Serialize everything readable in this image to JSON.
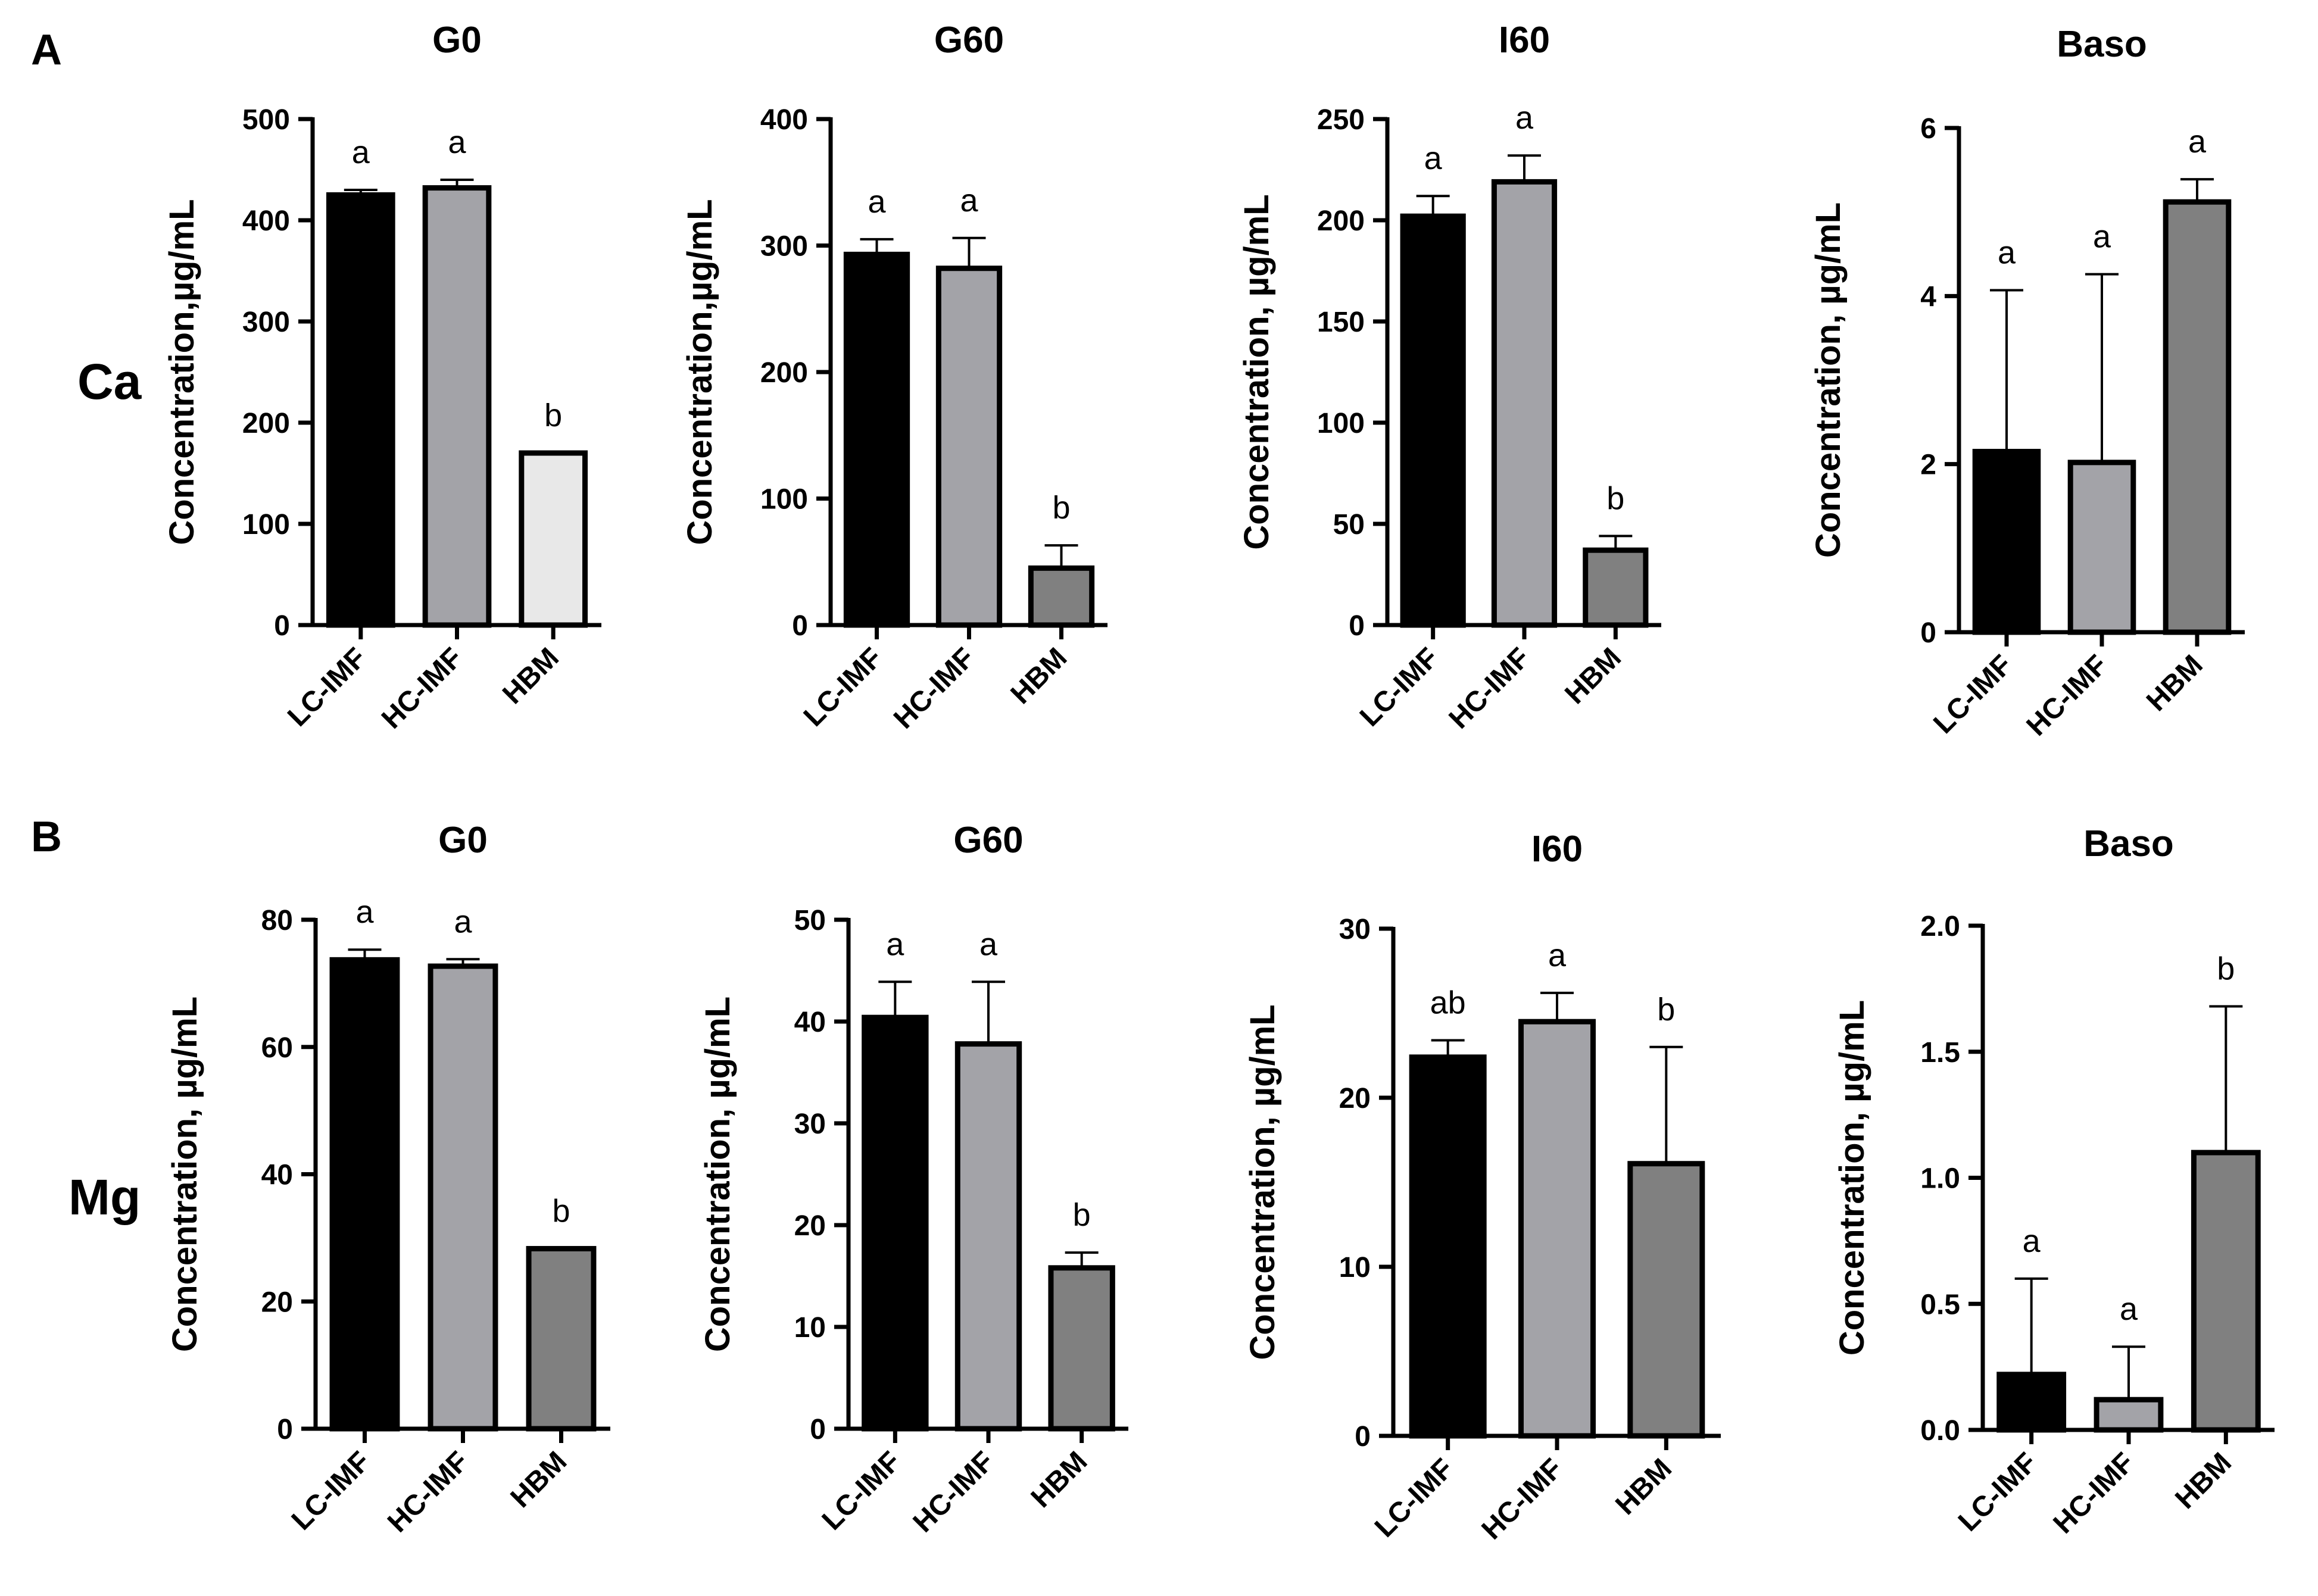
{
  "panel_labels": [
    "A",
    "B"
  ],
  "row_labels": [
    "Ca",
    "Mg"
  ],
  "colors": {
    "LC-IMF": "#000000",
    "HC-IMF": "#a3a3a8",
    "HBM_light": "#e8e8e8",
    "HBM_dark": "#808080",
    "axis": "#000000"
  },
  "chart_data": [
    {
      "type": "bar",
      "title": "G0",
      "ylabel": "Concentration,µg/mL",
      "categories": [
        "LC-IMF",
        "HC-IMF",
        "HBM"
      ],
      "values": [
        425,
        432,
        170
      ],
      "errors": [
        5,
        8,
        0
      ],
      "significance": [
        "a",
        "a",
        "b"
      ],
      "ylim": [
        0,
        500
      ],
      "yticks": [
        0,
        100,
        200,
        300,
        400,
        500
      ],
      "hbm_shade": "light"
    },
    {
      "type": "bar",
      "title": "G60",
      "ylabel": "Concentration,µg/mL",
      "categories": [
        "LC-IMF",
        "HC-IMF",
        "HBM"
      ],
      "values": [
        293,
        282,
        45
      ],
      "errors": [
        12,
        24,
        18
      ],
      "significance": [
        "a",
        "a",
        "b"
      ],
      "ylim": [
        0,
        400
      ],
      "yticks": [
        0,
        100,
        200,
        300,
        400
      ],
      "hbm_shade": "dark"
    },
    {
      "type": "bar",
      "title": "I60",
      "ylabel": "Concentration, µg/mL",
      "categories": [
        "LC-IMF",
        "HC-IMF",
        "HBM"
      ],
      "values": [
        202,
        219,
        37
      ],
      "errors": [
        10,
        13,
        7
      ],
      "significance": [
        "a",
        "a",
        "b"
      ],
      "ylim": [
        0,
        250
      ],
      "yticks": [
        0,
        50,
        100,
        150,
        200,
        250
      ],
      "hbm_shade": "dark"
    },
    {
      "type": "bar",
      "title": "Baso",
      "ylabel": "Concentration, µg/mL",
      "categories": [
        "LC-IMF",
        "HC-IMF",
        "HBM"
      ],
      "values": [
        2.15,
        2.02,
        5.12
      ],
      "errors": [
        1.92,
        2.24,
        0.27
      ],
      "significance": [
        "a",
        "a",
        "a"
      ],
      "ylim": [
        0,
        6
      ],
      "yticks": [
        0,
        2,
        4,
        6
      ],
      "hbm_shade": "dark"
    },
    {
      "type": "bar",
      "title": "G0",
      "ylabel": "Concentration, µg/mL",
      "categories": [
        "LC-IMF",
        "HC-IMF",
        "HBM"
      ],
      "values": [
        73.7,
        72.7,
        28.3
      ],
      "errors": [
        1.6,
        1.1,
        0
      ],
      "significance": [
        "a",
        "a",
        "b"
      ],
      "ylim": [
        0,
        80
      ],
      "yticks": [
        0,
        20,
        40,
        60,
        80
      ],
      "hbm_shade": "dark"
    },
    {
      "type": "bar",
      "title": "G60",
      "ylabel": "Concentration, µg/mL",
      "categories": [
        "LC-IMF",
        "HC-IMF",
        "HBM"
      ],
      "values": [
        40.4,
        37.8,
        15.8
      ],
      "errors": [
        3.5,
        6.1,
        1.5
      ],
      "significance": [
        "a",
        "a",
        "b"
      ],
      "ylim": [
        0,
        50
      ],
      "yticks": [
        0,
        10,
        20,
        30,
        40,
        50
      ],
      "hbm_shade": "dark"
    },
    {
      "type": "bar",
      "title": "I60",
      "ylabel": "Concentration, µg/mL",
      "categories": [
        "LC-IMF",
        "HC-IMF",
        "HBM"
      ],
      "values": [
        22.4,
        24.5,
        16.1
      ],
      "errors": [
        1.0,
        1.7,
        6.9
      ],
      "significance": [
        "ab",
        "a",
        "b"
      ],
      "ylim": [
        0,
        30
      ],
      "yticks": [
        0,
        10,
        20,
        30
      ],
      "hbm_shade": "dark"
    },
    {
      "type": "bar",
      "title": "Baso",
      "ylabel": "Concentration, µg/mL",
      "categories": [
        "LC-IMF",
        "HC-IMF",
        "HBM"
      ],
      "values": [
        0.22,
        0.12,
        1.1
      ],
      "errors": [
        0.38,
        0.21,
        0.58
      ],
      "significance": [
        "a",
        "a",
        "b"
      ],
      "ylim": [
        0,
        2.0
      ],
      "yticks": [
        0,
        0.5,
        1.0,
        1.5,
        2.0
      ],
      "ytick_decimals": 1,
      "hbm_shade": "dark"
    }
  ]
}
